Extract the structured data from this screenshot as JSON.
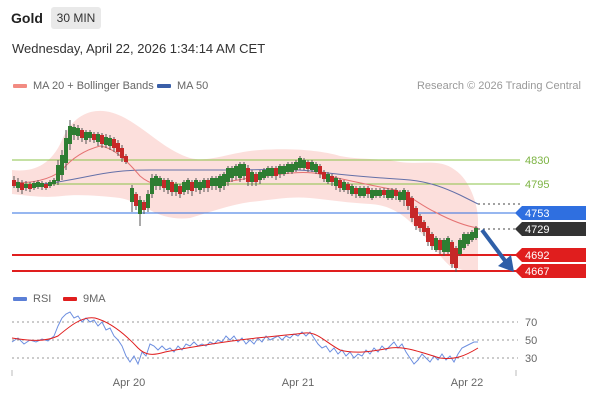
{
  "toolbar": {
    "title": "Gold",
    "timeframe": "30 MIN"
  },
  "header": {
    "datetime": "Wednesday, April 22, 2026 1:34:14 AM CET"
  },
  "legend": {
    "items": [
      {
        "label": "MA 20 + Bollinger Bands",
        "color": "#f28b82"
      },
      {
        "label": "MA 50",
        "color": "#3a5fa8"
      }
    ],
    "copyright": "Research © 2026 Trading Central"
  },
  "levels": [
    {
      "value": "4830",
      "kind": "resistance",
      "color": "#7cb342"
    },
    {
      "value": "4795",
      "kind": "resistance",
      "color": "#7cb342"
    },
    {
      "value": "4753",
      "kind": "pivot",
      "color": "#2f6fe0"
    },
    {
      "value": "4729",
      "kind": "last-price",
      "color": "#333333"
    },
    {
      "value": "4692",
      "kind": "support",
      "color": "#e01e1e"
    },
    {
      "value": "4667",
      "kind": "support",
      "color": "#e01e1e"
    }
  ],
  "rsi_legend": {
    "items": [
      {
        "label": "RSI",
        "color": "#5b7fd6"
      },
      {
        "label": "9MA",
        "color": "#e01e1e"
      }
    ]
  },
  "rsi_axis": [
    "70",
    "50",
    "30"
  ],
  "x_axis": [
    "Apr 20",
    "Apr 21",
    "Apr 22"
  ]
}
